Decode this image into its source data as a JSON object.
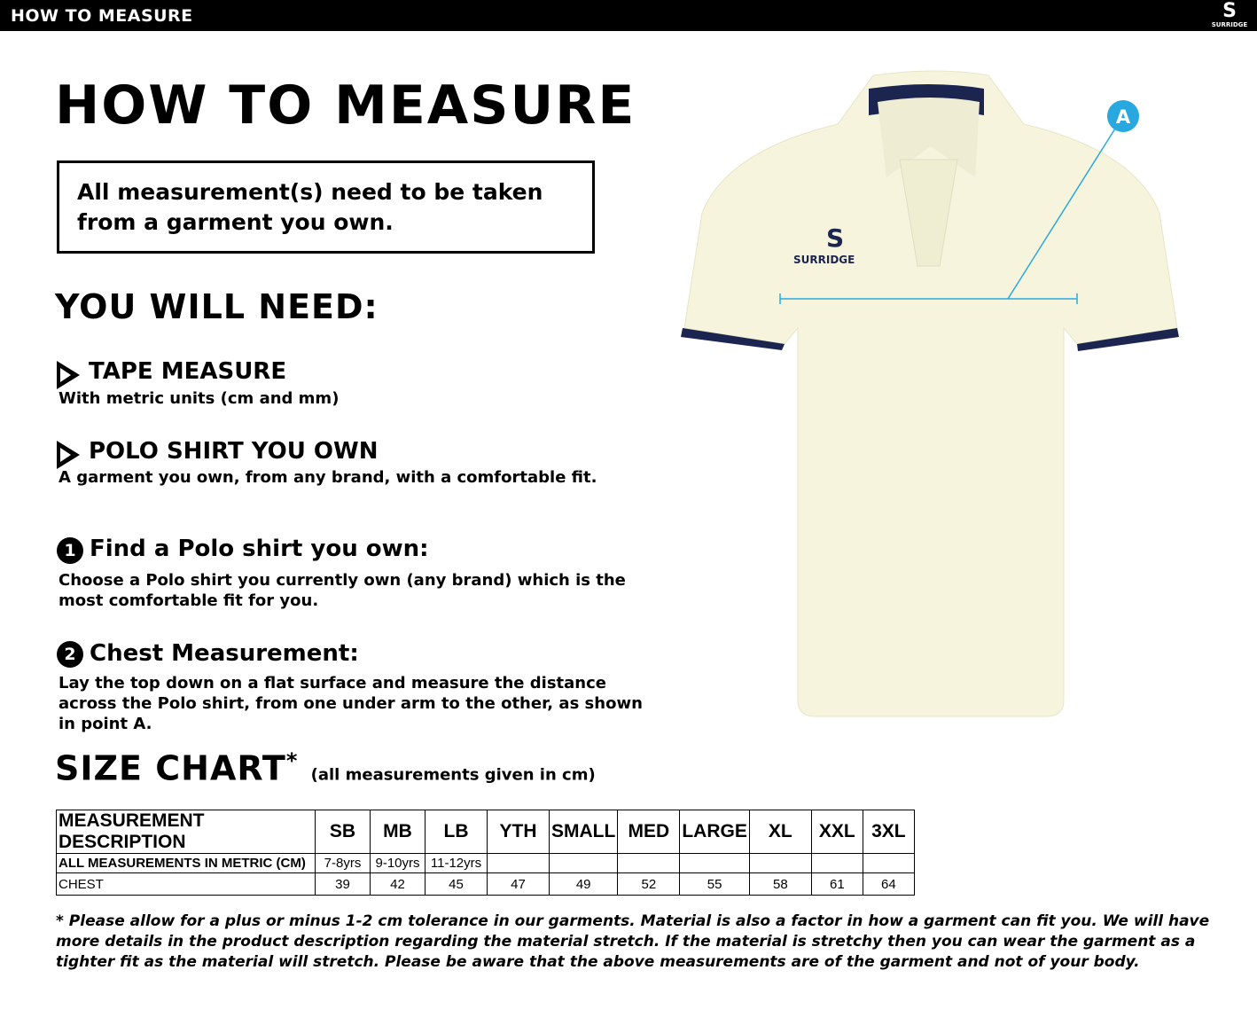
{
  "header": {
    "title": "HOW TO MEASURE",
    "logo": "SURRIDGE"
  },
  "title": "HOW TO MEASURE",
  "note": "All measurement(s) need to be taken from a garment you own.",
  "need_heading": "YOU WILL NEED:",
  "needs": [
    {
      "title": "TAPE MEASURE",
      "text": "With metric units (cm and mm)"
    },
    {
      "title": "POLO SHIRT YOU OWN",
      "text": "A garment you own, from any brand, with a comfortable fit."
    }
  ],
  "steps": [
    {
      "num": "1",
      "title": "Find a Polo shirt you own:",
      "text": "Choose a Polo shirt you currently own (any brand) which is the most comfortable fit for you."
    },
    {
      "num": "2",
      "title": "Chest Measurement:",
      "text": "Lay the top down on a flat surface and measure the distance across the Polo shirt, from one under arm to the other, as shown in point A."
    }
  ],
  "size_chart": {
    "title": "SIZE CHART",
    "asterisk": "*",
    "subtitle": "(all measurements given in cm)",
    "headers": [
      "MEASUREMENT DESCRIPTION",
      "SB",
      "MB",
      "LB",
      "YTH",
      "SMALL",
      "MED",
      "LARGE",
      "XL",
      "XXL",
      "3XL"
    ],
    "rows": [
      [
        "ALL MEASUREMENTS IN METRIC (CM)",
        "7-8yrs",
        "9-10yrs",
        "11-12yrs",
        "",
        "",
        "",
        "",
        "",
        "",
        ""
      ],
      [
        "CHEST",
        "39",
        "42",
        "45",
        "47",
        "49",
        "52",
        "55",
        "58",
        "61",
        "64"
      ]
    ]
  },
  "image": {
    "point_label": "A",
    "brand": "SURRIDGE",
    "accent": "#29a8e0",
    "shirt_color": "#f6f4dc",
    "trim_color": "#1c2550"
  },
  "footnote": "* Please allow for a plus or minus 1-2 cm tolerance in our garments. Material is also a factor in how a garment can fit you. We will have more details in the product description regarding the material stretch.  If the material is stretchy then you can wear the garment as a tighter fit as the material will stretch.  Please be aware that the above measurements are of the garment and not of your body."
}
